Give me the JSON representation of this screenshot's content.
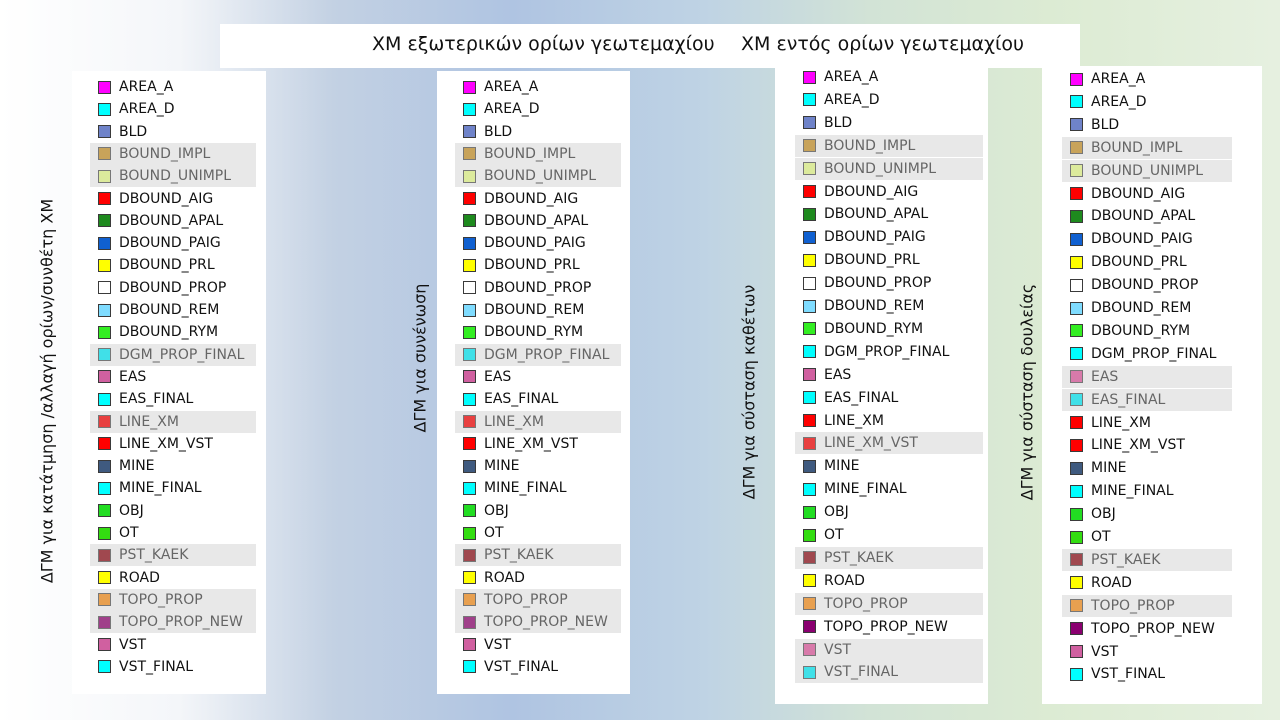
{
  "headers": {
    "external": "ΧΜ εξωτερικών ορίων γεωτεμαχίου",
    "internal": "ΧΜ εντός ορίων γεωτεμαχίου"
  },
  "panels": [
    {
      "vertical_label": "ΔΓΜ για κατάτμηση /αλλαγή ορίων/συνθέτη ΧΜ",
      "layers": [
        {
          "name": "AREA_A",
          "color": "#ff00ff",
          "dim": false
        },
        {
          "name": "AREA_D",
          "color": "#00ffff",
          "dim": false
        },
        {
          "name": "BLD",
          "color": "#6f83c9",
          "dim": false
        },
        {
          "name": "BOUND_IMPL",
          "color": "#c8a35a",
          "dim": true
        },
        {
          "name": "BOUND_UNIMPL",
          "color": "#dcea9c",
          "dim": true
        },
        {
          "name": "DBOUND_AIG",
          "color": "#ff0000",
          "dim": false
        },
        {
          "name": "DBOUND_APAL",
          "color": "#1e8a1e",
          "dim": false
        },
        {
          "name": "DBOUND_PAIG",
          "color": "#1060d0",
          "dim": false
        },
        {
          "name": "DBOUND_PRL",
          "color": "#ffff00",
          "dim": false
        },
        {
          "name": "DBOUND_PROP",
          "color": "#ffffff",
          "dim": false
        },
        {
          "name": "DBOUND_REM",
          "color": "#7fdcff",
          "dim": false
        },
        {
          "name": "DBOUND_RYM",
          "color": "#33ee22",
          "dim": false
        },
        {
          "name": "DGM_PROP_FINAL",
          "color": "#40e0e8",
          "dim": true
        },
        {
          "name": "EAS",
          "color": "#d060a0",
          "dim": false
        },
        {
          "name": "EAS_FINAL",
          "color": "#00ffff",
          "dim": false
        },
        {
          "name": "LINE_XM",
          "color": "#e84040",
          "dim": true
        },
        {
          "name": "LINE_XM_VST",
          "color": "#ff0000",
          "dim": false
        },
        {
          "name": "MINE",
          "color": "#3f5a7f",
          "dim": false
        },
        {
          "name": "MINE_FINAL",
          "color": "#00ffff",
          "dim": false
        },
        {
          "name": "OBJ",
          "color": "#22dd22",
          "dim": false
        },
        {
          "name": "OT",
          "color": "#33dd11",
          "dim": false
        },
        {
          "name": "PST_KAEK",
          "color": "#a0484f",
          "dim": true
        },
        {
          "name": "ROAD",
          "color": "#ffff00",
          "dim": false
        },
        {
          "name": "TOPO_PROP",
          "color": "#e8a050",
          "dim": true
        },
        {
          "name": "TOPO_PROP_NEW",
          "color": "#a0408a",
          "dim": true
        },
        {
          "name": "VST",
          "color": "#d060a0",
          "dim": false
        },
        {
          "name": "VST_FINAL",
          "color": "#00ffff",
          "dim": false
        }
      ]
    },
    {
      "vertical_label": "ΔΓΜ για συνένωση",
      "layers": [
        {
          "name": "AREA_A",
          "color": "#ff00ff",
          "dim": false
        },
        {
          "name": "AREA_D",
          "color": "#00ffff",
          "dim": false
        },
        {
          "name": "BLD",
          "color": "#6f83c9",
          "dim": false
        },
        {
          "name": "BOUND_IMPL",
          "color": "#c8a35a",
          "dim": true
        },
        {
          "name": "BOUND_UNIMPL",
          "color": "#dcea9c",
          "dim": true
        },
        {
          "name": "DBOUND_AIG",
          "color": "#ff0000",
          "dim": false
        },
        {
          "name": "DBOUND_APAL",
          "color": "#1e8a1e",
          "dim": false
        },
        {
          "name": "DBOUND_PAIG",
          "color": "#1060d0",
          "dim": false
        },
        {
          "name": "DBOUND_PRL",
          "color": "#ffff00",
          "dim": false
        },
        {
          "name": "DBOUND_PROP",
          "color": "#ffffff",
          "dim": false
        },
        {
          "name": "DBOUND_REM",
          "color": "#7fdcff",
          "dim": false
        },
        {
          "name": "DBOUND_RYM",
          "color": "#33ee22",
          "dim": false
        },
        {
          "name": "DGM_PROP_FINAL",
          "color": "#40e0e8",
          "dim": true
        },
        {
          "name": "EAS",
          "color": "#d060a0",
          "dim": false
        },
        {
          "name": "EAS_FINAL",
          "color": "#00ffff",
          "dim": false
        },
        {
          "name": "LINE_XM",
          "color": "#e84040",
          "dim": true
        },
        {
          "name": "LINE_XM_VST",
          "color": "#ff0000",
          "dim": false
        },
        {
          "name": "MINE",
          "color": "#3f5a7f",
          "dim": false
        },
        {
          "name": "MINE_FINAL",
          "color": "#00ffff",
          "dim": false
        },
        {
          "name": "OBJ",
          "color": "#22dd22",
          "dim": false
        },
        {
          "name": "OT",
          "color": "#33dd11",
          "dim": false
        },
        {
          "name": "PST_KAEK",
          "color": "#a0484f",
          "dim": true
        },
        {
          "name": "ROAD",
          "color": "#ffff00",
          "dim": false
        },
        {
          "name": "TOPO_PROP",
          "color": "#e8a050",
          "dim": true
        },
        {
          "name": "TOPO_PROP_NEW",
          "color": "#a0408a",
          "dim": true
        },
        {
          "name": "VST",
          "color": "#d060a0",
          "dim": false
        },
        {
          "name": "VST_FINAL",
          "color": "#00ffff",
          "dim": false
        }
      ]
    },
    {
      "vertical_label": "ΔΓΜ για σύσταση καθέτων",
      "layers": [
        {
          "name": "AREA_A",
          "color": "#ff00ff",
          "dim": false
        },
        {
          "name": "AREA_D",
          "color": "#00ffff",
          "dim": false
        },
        {
          "name": "BLD",
          "color": "#6f83c9",
          "dim": false
        },
        {
          "name": "BOUND_IMPL",
          "color": "#c8a35a",
          "dim": true
        },
        {
          "name": "BOUND_UNIMPL",
          "color": "#dcea9c",
          "dim": true
        },
        {
          "name": "DBOUND_AIG",
          "color": "#ff0000",
          "dim": false
        },
        {
          "name": "DBOUND_APAL",
          "color": "#1e8a1e",
          "dim": false
        },
        {
          "name": "DBOUND_PAIG",
          "color": "#1060d0",
          "dim": false
        },
        {
          "name": "DBOUND_PRL",
          "color": "#ffff00",
          "dim": false
        },
        {
          "name": "DBOUND_PROP",
          "color": "#ffffff",
          "dim": false
        },
        {
          "name": "DBOUND_REM",
          "color": "#7fdcff",
          "dim": false
        },
        {
          "name": "DBOUND_RYM",
          "color": "#33ee22",
          "dim": false
        },
        {
          "name": "DGM_PROP_FINAL",
          "color": "#00ffff",
          "dim": false
        },
        {
          "name": "EAS",
          "color": "#d060a0",
          "dim": false
        },
        {
          "name": "EAS_FINAL",
          "color": "#00ffff",
          "dim": false
        },
        {
          "name": "LINE_XM",
          "color": "#ff0000",
          "dim": false
        },
        {
          "name": "LINE_XM_VST",
          "color": "#e84040",
          "dim": true
        },
        {
          "name": "MINE",
          "color": "#3f5a7f",
          "dim": false
        },
        {
          "name": "MINE_FINAL",
          "color": "#00ffff",
          "dim": false
        },
        {
          "name": "OBJ",
          "color": "#22dd22",
          "dim": false
        },
        {
          "name": "OT",
          "color": "#33dd11",
          "dim": false
        },
        {
          "name": "PST_KAEK",
          "color": "#a0484f",
          "dim": true
        },
        {
          "name": "ROAD",
          "color": "#ffff00",
          "dim": false
        },
        {
          "name": "TOPO_PROP",
          "color": "#e8a050",
          "dim": true
        },
        {
          "name": "TOPO_PROP_NEW",
          "color": "#8a0070",
          "dim": false
        },
        {
          "name": "VST",
          "color": "#d87aaa",
          "dim": true
        },
        {
          "name": "VST_FINAL",
          "color": "#40e0e8",
          "dim": true
        }
      ]
    },
    {
      "vertical_label": "ΔΓΜ για σύσταση δουλείας",
      "layers": [
        {
          "name": "AREA_A",
          "color": "#ff00ff",
          "dim": false
        },
        {
          "name": "AREA_D",
          "color": "#00ffff",
          "dim": false
        },
        {
          "name": "BLD",
          "color": "#6f83c9",
          "dim": false
        },
        {
          "name": "BOUND_IMPL",
          "color": "#c8a35a",
          "dim": true
        },
        {
          "name": "BOUND_UNIMPL",
          "color": "#dcea9c",
          "dim": true
        },
        {
          "name": "DBOUND_AIG",
          "color": "#ff0000",
          "dim": false
        },
        {
          "name": "DBOUND_APAL",
          "color": "#1e8a1e",
          "dim": false
        },
        {
          "name": "DBOUND_PAIG",
          "color": "#1060d0",
          "dim": false
        },
        {
          "name": "DBOUND_PRL",
          "color": "#ffff00",
          "dim": false
        },
        {
          "name": "DBOUND_PROP",
          "color": "#ffffff",
          "dim": false
        },
        {
          "name": "DBOUND_REM",
          "color": "#7fdcff",
          "dim": false
        },
        {
          "name": "DBOUND_RYM",
          "color": "#33ee22",
          "dim": false
        },
        {
          "name": "DGM_PROP_FINAL",
          "color": "#00ffff",
          "dim": false
        },
        {
          "name": "EAS",
          "color": "#d87aaa",
          "dim": true
        },
        {
          "name": "EAS_FINAL",
          "color": "#40e0e8",
          "dim": true
        },
        {
          "name": "LINE_XM",
          "color": "#ff0000",
          "dim": false
        },
        {
          "name": "LINE_XM_VST",
          "color": "#ff0000",
          "dim": false
        },
        {
          "name": "MINE",
          "color": "#3f5a7f",
          "dim": false
        },
        {
          "name": "MINE_FINAL",
          "color": "#00ffff",
          "dim": false
        },
        {
          "name": "OBJ",
          "color": "#22dd22",
          "dim": false
        },
        {
          "name": "OT",
          "color": "#33dd11",
          "dim": false
        },
        {
          "name": "PST_KAEK",
          "color": "#a0484f",
          "dim": true
        },
        {
          "name": "ROAD",
          "color": "#ffff00",
          "dim": false
        },
        {
          "name": "TOPO_PROP",
          "color": "#e8a050",
          "dim": true
        },
        {
          "name": "TOPO_PROP_NEW",
          "color": "#8a0070",
          "dim": false
        },
        {
          "name": "VST",
          "color": "#d060a0",
          "dim": false
        },
        {
          "name": "VST_FINAL",
          "color": "#00ffff",
          "dim": false
        }
      ]
    }
  ]
}
